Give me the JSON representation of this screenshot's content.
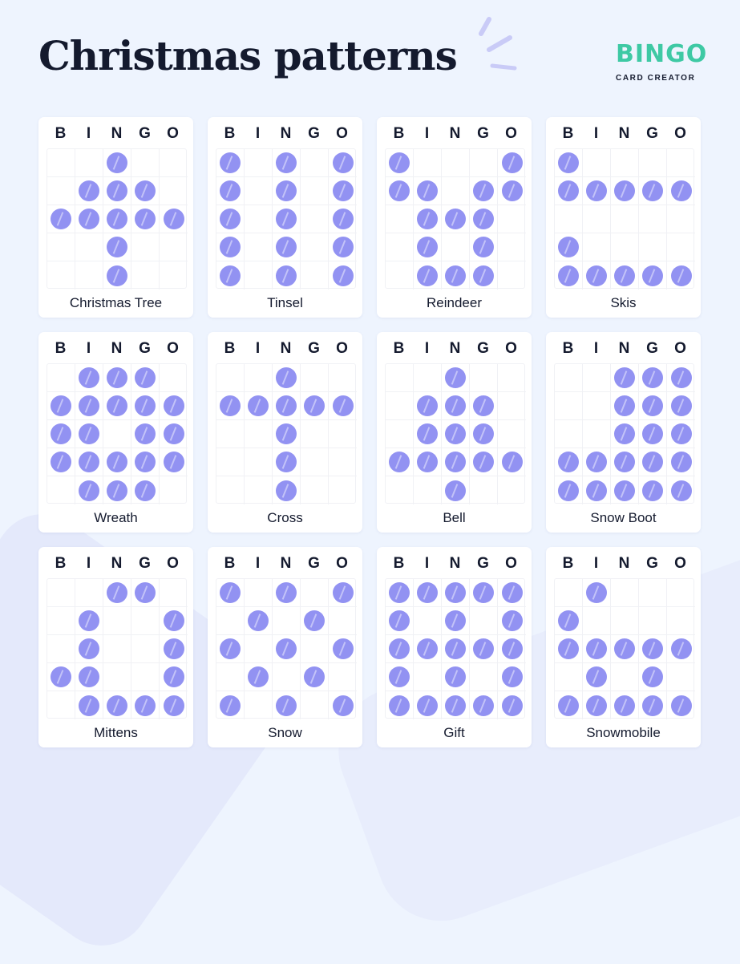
{
  "title": "Christmas patterns",
  "logo": {
    "word": "BINGO",
    "subtitle": "CARD CREATOR",
    "color": "#3ec9a4"
  },
  "header_letters": [
    "B",
    "I",
    "N",
    "G",
    "O"
  ],
  "dot_color": "#9292f2",
  "cards": [
    {
      "name": "Christmas Tree",
      "pattern": [
        "00100",
        "01110",
        "11111",
        "00100",
        "00100"
      ]
    },
    {
      "name": "Tinsel",
      "pattern": [
        "10101",
        "10101",
        "10101",
        "10101",
        "10101"
      ]
    },
    {
      "name": "Reindeer",
      "pattern": [
        "10001",
        "11011",
        "01110",
        "01010",
        "01110"
      ]
    },
    {
      "name": "Skis",
      "pattern": [
        "10000",
        "11111",
        "00000",
        "10000",
        "11111"
      ]
    },
    {
      "name": "Wreath",
      "pattern": [
        "01110",
        "11111",
        "11011",
        "11111",
        "01110"
      ]
    },
    {
      "name": "Cross",
      "pattern": [
        "00100",
        "11111",
        "00100",
        "00100",
        "00100"
      ]
    },
    {
      "name": "Bell",
      "pattern": [
        "00100",
        "01110",
        "01110",
        "11111",
        "00100"
      ]
    },
    {
      "name": "Snow Boot",
      "pattern": [
        "00111",
        "00111",
        "00111",
        "11111",
        "11111"
      ]
    },
    {
      "name": "Mittens",
      "pattern": [
        "00110",
        "01001",
        "01001",
        "11001",
        "01111"
      ]
    },
    {
      "name": "Snow",
      "pattern": [
        "10101",
        "01010",
        "10101",
        "01010",
        "10101"
      ]
    },
    {
      "name": "Gift",
      "pattern": [
        "11111",
        "10101",
        "11111",
        "10101",
        "11111"
      ]
    },
    {
      "name": "Snowmobile",
      "pattern": [
        "01000",
        "10000",
        "11111",
        "01010",
        "11111"
      ]
    }
  ]
}
